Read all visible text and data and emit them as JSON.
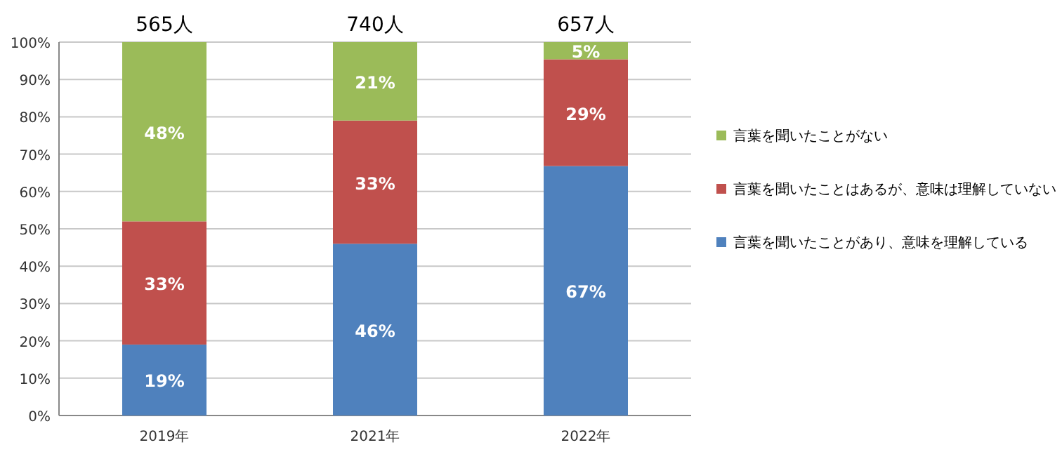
{
  "chart_data": {
    "type": "bar",
    "stacked": true,
    "categories": [
      "2019年",
      "2021年",
      "2022年"
    ],
    "series": [
      {
        "name": "言葉を聞いたことがあり、意味を理解している",
        "color": "#4f81bd",
        "values": [
          19,
          46,
          66.8
        ],
        "value_labels": [
          "19%",
          "46%",
          "67%"
        ]
      },
      {
        "name": "言葉を聞いたことはあるが、意味は理解していない",
        "color": "#c0504d",
        "values": [
          33,
          33,
          28.6
        ],
        "value_labels": [
          "33%",
          "33%",
          "29%"
        ]
      },
      {
        "name": "言葉を聞いたことがない",
        "color": "#9bbb59",
        "values": [
          48,
          21,
          4.6
        ],
        "value_labels": [
          "48%",
          "21%",
          "5%"
        ]
      }
    ],
    "annotations": [
      {
        "text": "565人",
        "x": "2019年",
        "y": 100
      },
      {
        "text": "740人",
        "x": "2021年",
        "y": 100
      },
      {
        "text": "657人",
        "x": "2022年",
        "y": 100
      }
    ],
    "ylim": [
      0,
      100
    ],
    "yticks": [
      {
        "value": 0,
        "label": "0%"
      },
      {
        "value": 10,
        "label": "10%"
      },
      {
        "value": 20,
        "label": "20%"
      },
      {
        "value": 30,
        "label": "30%"
      },
      {
        "value": 40,
        "label": "40%"
      },
      {
        "value": 50,
        "label": "50%"
      },
      {
        "value": 60,
        "label": "60%"
      },
      {
        "value": 70,
        "label": "70%"
      },
      {
        "value": 80,
        "label": "80%"
      },
      {
        "value": 90,
        "label": "90%"
      },
      {
        "value": 100,
        "label": "100%"
      }
    ],
    "grid": "y",
    "legend": "right"
  }
}
